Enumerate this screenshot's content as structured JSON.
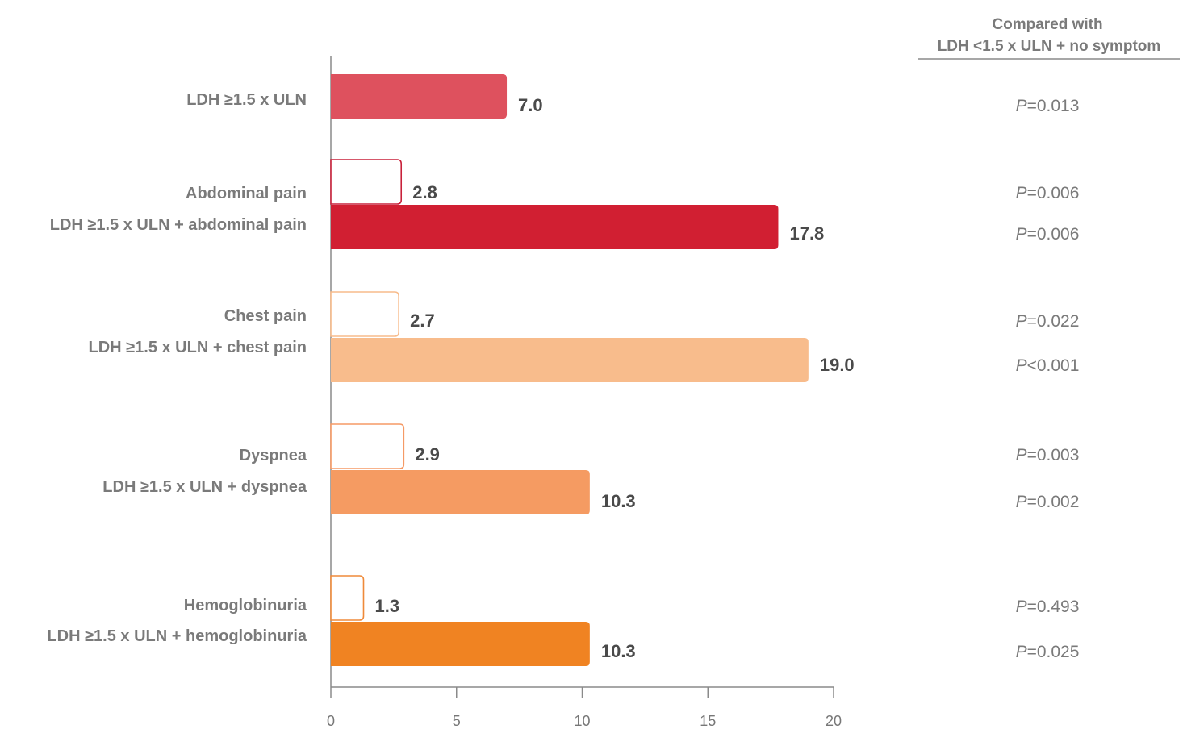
{
  "chart_data": {
    "type": "bar",
    "orientation": "horizontal",
    "xlim": [
      0,
      20
    ],
    "xticks": [
      0,
      5,
      10,
      15,
      20
    ],
    "grid": false,
    "column_header": {
      "line1": "Compared with",
      "line2": "LDH <1.5 x ULN + no symptom"
    },
    "bars": [
      {
        "label": "LDH ≥1.5 x ULN",
        "value": 7.0,
        "value_label": "7.0",
        "style": "filled",
        "color": "#de515e",
        "p_prefix": "P",
        "p_rest": "=0.013"
      },
      {
        "label": "Abdominal pain",
        "value": 2.8,
        "value_label": "2.8",
        "style": "outline",
        "color": "#c8213a",
        "p_prefix": "P",
        "p_rest": "=0.006"
      },
      {
        "label": "LDH ≥1.5 x ULN + abdominal pain",
        "value": 17.8,
        "value_label": "17.8",
        "style": "filled",
        "color": "#d11f32",
        "p_prefix": "P",
        "p_rest": "=0.006"
      },
      {
        "label": "Chest pain",
        "value": 2.7,
        "value_label": "2.7",
        "style": "outline",
        "color": "#f7bb8b",
        "p_prefix": "P",
        "p_rest": "=0.022"
      },
      {
        "label": "LDH ≥1.5 x ULN + chest pain",
        "value": 19.0,
        "value_label": "19.0",
        "style": "filled",
        "color": "#f8bc8c",
        "p_prefix": "P",
        "p_rest": "<0.001"
      },
      {
        "label": "Dyspnea",
        "value": 2.9,
        "value_label": "2.9",
        "style": "outline",
        "color": "#f59a66",
        "p_prefix": "P",
        "p_rest": "=0.003"
      },
      {
        "label": "LDH ≥1.5 x ULN + dyspnea",
        "value": 10.3,
        "value_label": "10.3",
        "style": "filled",
        "color": "#f59b62",
        "p_prefix": "P",
        "p_rest": "=0.002"
      },
      {
        "label": "Hemoglobinuria",
        "value": 1.3,
        "value_label": "1.3",
        "style": "outline",
        "color": "#ef8a3a",
        "p_prefix": "P",
        "p_rest": "=0.493"
      },
      {
        "label": "LDH ≥1.5 x ULN + hemoglobinuria",
        "value": 10.3,
        "value_label": "10.3",
        "style": "filled",
        "color": "#f08322",
        "p_prefix": "P",
        "p_rest": "=0.025"
      }
    ]
  }
}
